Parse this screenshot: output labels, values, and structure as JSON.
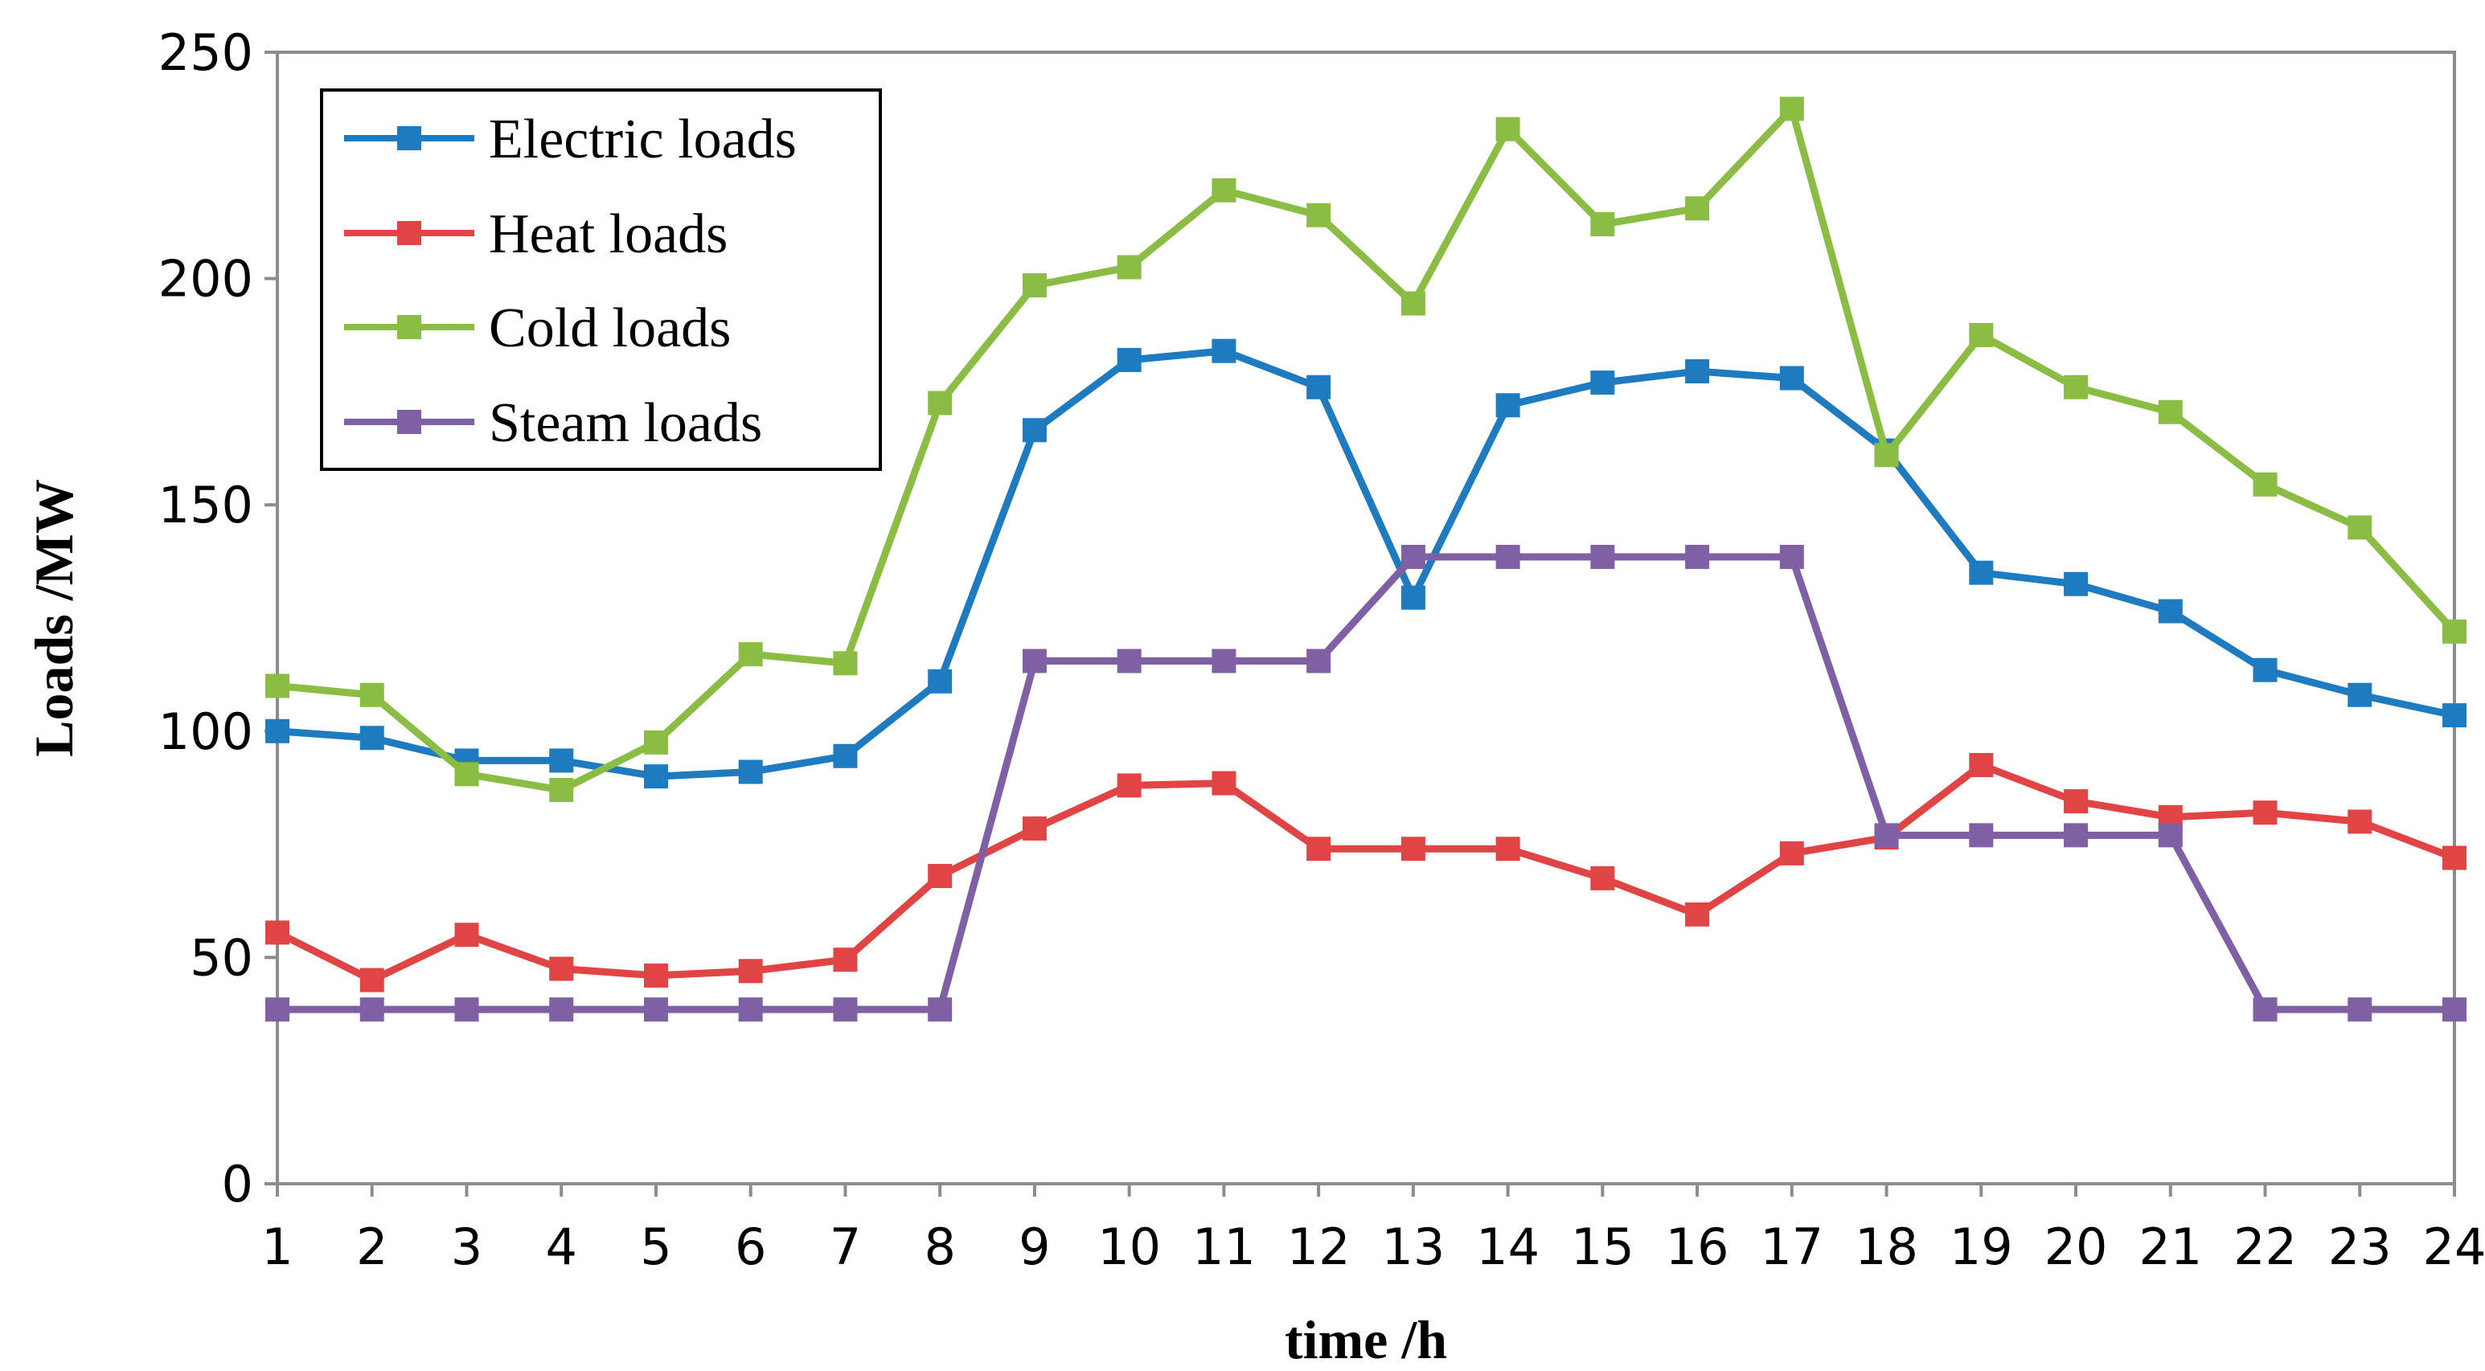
{
  "chart_data": {
    "type": "line",
    "title": "",
    "xlabel": "time /h",
    "ylabel": "Loads /MW",
    "x": [
      1,
      2,
      3,
      4,
      5,
      6,
      7,
      8,
      9,
      10,
      11,
      12,
      13,
      14,
      15,
      16,
      17,
      18,
      19,
      20,
      21,
      22,
      23,
      24
    ],
    "xticks": [
      "1",
      "2",
      "3",
      "4",
      "5",
      "6",
      "7",
      "8",
      "9",
      "10",
      "11",
      "12",
      "13",
      "14",
      "15",
      "16",
      "17",
      "18",
      "19",
      "20",
      "21",
      "22",
      "23",
      "24"
    ],
    "ylim": [
      0,
      250
    ],
    "yticks": [
      "0",
      "50",
      "100",
      "150",
      "200",
      "250"
    ],
    "grid": false,
    "legend_position": "top-left",
    "series": [
      {
        "name": "Electric loads",
        "color": "#1f7bc0",
        "marker": "square",
        "values": [
          100,
          98.5,
          93.5,
          93.5,
          90,
          91,
          94.5,
          111,
          166.5,
          182,
          184,
          176,
          129.5,
          172,
          177,
          179.5,
          178,
          162,
          135,
          132.5,
          126.5,
          113.5,
          108,
          103.5
        ]
      },
      {
        "name": "Heat loads",
        "color": "#e04444",
        "marker": "square",
        "values": [
          55.5,
          45,
          55,
          47.5,
          46,
          47,
          49.5,
          68,
          78.5,
          88,
          88.5,
          74,
          74,
          74,
          67.5,
          59.5,
          73,
          76.5,
          92.5,
          84.5,
          81,
          82,
          80,
          72
        ]
      },
      {
        "name": "Cold loads",
        "color": "#8bbd45",
        "marker": "square",
        "values": [
          110,
          108,
          90.5,
          87,
          97.5,
          117,
          115,
          172.5,
          198.5,
          202.5,
          219.5,
          214,
          194.5,
          233,
          212,
          215.5,
          237.5,
          161,
          187.5,
          176,
          170.5,
          154.5,
          145,
          122
        ]
      },
      {
        "name": "Steam loads",
        "color": "#8060a4",
        "marker": "square",
        "values": [
          38.5,
          38.5,
          38.5,
          38.5,
          38.5,
          38.5,
          38.5,
          38.5,
          115.5,
          115.5,
          115.5,
          115.5,
          138.5,
          138.5,
          138.5,
          138.5,
          138.5,
          77,
          77,
          77,
          77,
          38.5,
          38.5,
          38.5
        ]
      }
    ]
  }
}
